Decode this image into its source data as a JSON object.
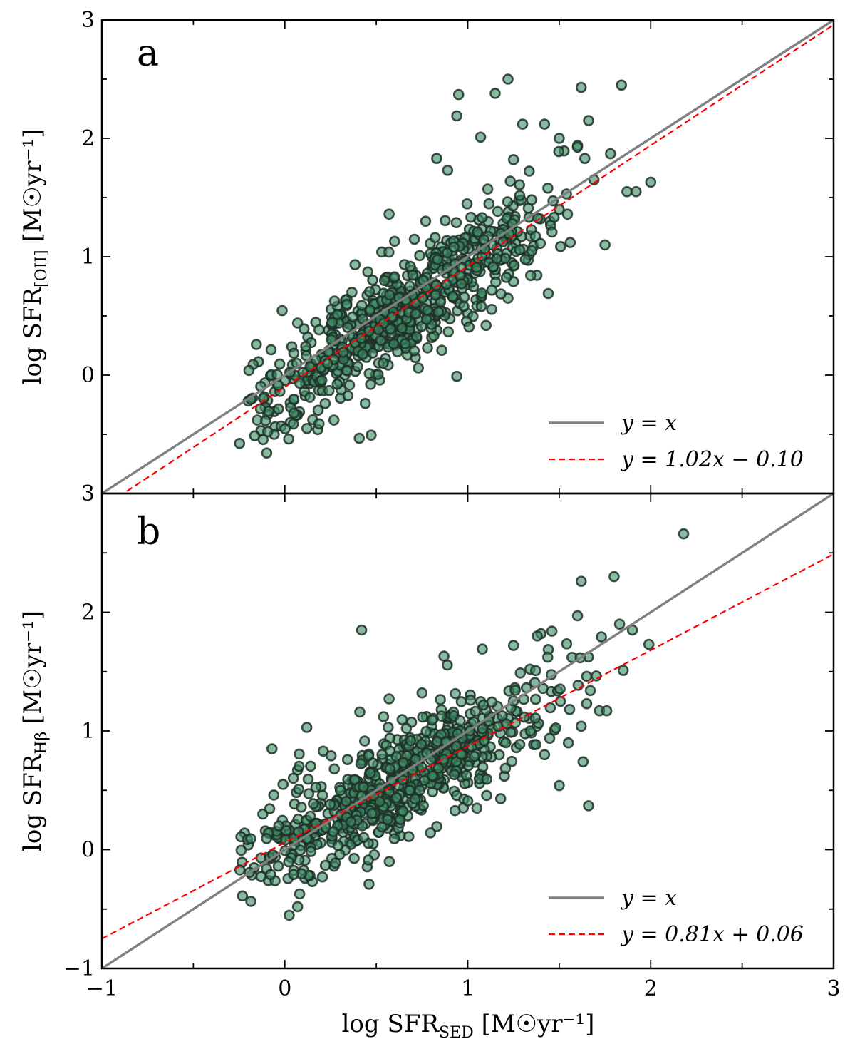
{
  "colors": {
    "marker_fill": "#3f8f66",
    "marker_edge": "#1f2f28",
    "identity_line": "#808080",
    "fit_line": "#ff0000"
  },
  "axis_labels": {
    "x_main": "log SFR",
    "x_sub": "SED",
    "x_unit": "[M☉yr⁻¹]",
    "ya_main": "log SFR",
    "ya_sub": "[OII]",
    "ya_unit": "[M☉yr⁻¹]",
    "yb_main": "log SFR",
    "yb_sub": "Hβ",
    "yb_unit": "[M☉yr⁻¹]"
  },
  "panels": {
    "a": {
      "letter": "a"
    },
    "b": {
      "letter": "b"
    }
  },
  "chart_data": [
    {
      "type": "scatter",
      "panel": "a",
      "title": "",
      "xlabel": "log SFR_SED [M☉yr⁻¹]",
      "ylabel": "log SFR_[OII] [M☉yr⁻¹]",
      "xlim": [
        -1,
        3
      ],
      "ylim": [
        -1,
        3
      ],
      "y_tick_labels": [
        "0",
        "1",
        "2",
        "3"
      ],
      "bottom_edge_label": "3",
      "x_tick_labels": [],
      "grid": false,
      "legend_position": "bottom-right",
      "lines": [
        {
          "name": "y = x",
          "slope": 1.0,
          "intercept": 0.0,
          "style": "solid",
          "color": "#808080"
        },
        {
          "name": "y = 1.02x − 0.10",
          "slope": 1.02,
          "intercept": -0.1,
          "style": "dashed",
          "color": "#ff0000"
        }
      ],
      "n_points": 720,
      "points": [
        [
          1.22,
          2.5
        ],
        [
          0.95,
          2.37
        ],
        [
          1.15,
          2.38
        ],
        [
          1.62,
          2.43
        ],
        [
          1.84,
          2.45
        ],
        [
          0.94,
          2.19
        ],
        [
          1.3,
          2.12
        ],
        [
          1.42,
          2.12
        ],
        [
          1.5,
          2.0
        ],
        [
          1.66,
          2.15
        ],
        [
          1.6,
          1.94
        ],
        [
          1.07,
          2.01
        ],
        [
          1.78,
          1.87
        ],
        [
          0.83,
          1.83
        ],
        [
          0.89,
          1.73
        ],
        [
          1.25,
          1.82
        ],
        [
          1.64,
          1.83
        ],
        [
          1.69,
          1.65
        ],
        [
          1.87,
          1.55
        ],
        [
          1.92,
          1.55
        ],
        [
          2.0,
          1.63
        ],
        [
          1.75,
          1.1
        ],
        [
          1.56,
          1.12
        ],
        [
          1.44,
          0.69
        ],
        [
          0.57,
          1.36
        ],
        [
          0.77,
          1.3
        ],
        [
          0.6,
          1.13
        ],
        [
          0.53,
          1.04
        ],
        [
          0.4,
          0.54
        ],
        [
          0.34,
          0.64
        ],
        [
          0.07,
          0.44
        ],
        [
          0.03,
          -0.4
        ],
        [
          0.18,
          -0.46
        ],
        [
          0.08,
          -0.31
        ],
        [
          -0.13,
          -0.47
        ],
        [
          -0.15,
          -0.38
        ],
        [
          -0.2,
          -0.22
        ],
        [
          0.44,
          -0.24
        ],
        [
          0.94,
          -0.01
        ],
        [
          0.53,
          0.54
        ],
        [
          0.55,
          0.14
        ],
        [
          0.73,
          0.06
        ],
        [
          0.78,
          0.23
        ],
        [
          1.0,
          0.52
        ],
        [
          1.1,
          0.42
        ],
        [
          1.15,
          0.85
        ],
        [
          1.25,
          0.79
        ],
        [
          1.22,
          0.65
        ],
        [
          1.33,
          0.97
        ],
        [
          1.36,
          1.09
        ],
        [
          1.45,
          1.3
        ],
        [
          1.5,
          1.4
        ],
        [
          1.54,
          1.53
        ]
      ]
    },
    {
      "type": "scatter",
      "panel": "b",
      "title": "",
      "xlabel": "log SFR_SED [M☉yr⁻¹]",
      "ylabel": "log SFR_Hβ [M☉yr⁻¹]",
      "xlim": [
        -1,
        3
      ],
      "ylim": [
        -1,
        3
      ],
      "x_tick_labels": [
        "−1",
        "0",
        "1",
        "2",
        "3"
      ],
      "y_tick_labels": [
        "−1",
        "0",
        "1",
        "2"
      ],
      "grid": false,
      "legend_position": "bottom-right",
      "lines": [
        {
          "name": "y = x",
          "slope": 1.0,
          "intercept": 0.0,
          "style": "solid",
          "color": "#808080"
        },
        {
          "name": "y = 0.81x + 0.06",
          "slope": 0.81,
          "intercept": 0.06,
          "style": "dashed",
          "color": "#ff0000"
        }
      ],
      "n_points": 720,
      "points": [
        [
          2.18,
          2.66
        ],
        [
          1.62,
          2.26
        ],
        [
          1.8,
          2.3
        ],
        [
          1.6,
          1.97
        ],
        [
          1.83,
          1.9
        ],
        [
          1.9,
          1.85
        ],
        [
          1.99,
          1.73
        ],
        [
          1.85,
          1.51
        ],
        [
          0.42,
          1.85
        ],
        [
          1.4,
          1.82
        ],
        [
          1.46,
          1.84
        ],
        [
          1.38,
          1.8
        ],
        [
          1.65,
          1.46
        ],
        [
          1.67,
          1.34
        ],
        [
          1.65,
          1.23
        ],
        [
          1.72,
          1.17
        ],
        [
          1.76,
          1.17
        ],
        [
          1.62,
          1.04
        ],
        [
          1.63,
          0.74
        ],
        [
          1.66,
          0.37
        ],
        [
          1.5,
          0.54
        ],
        [
          1.57,
          1.62
        ],
        [
          1.25,
          1.72
        ],
        [
          1.08,
          1.69
        ],
        [
          0.87,
          1.63
        ],
        [
          0.75,
          1.32
        ],
        [
          0.57,
          1.27
        ],
        [
          0.54,
          1.12
        ],
        [
          0.41,
          1.16
        ],
        [
          0.12,
          1.03
        ],
        [
          -0.07,
          0.85
        ],
        [
          0.21,
          0.83
        ],
        [
          0.07,
          0.67
        ],
        [
          -0.01,
          0.55
        ],
        [
          -0.06,
          0.46
        ],
        [
          -0.12,
          0.3
        ],
        [
          -0.22,
          0.14
        ],
        [
          -0.2,
          0.04
        ],
        [
          -0.13,
          -0.07
        ],
        [
          -0.1,
          -0.16
        ],
        [
          -0.09,
          -0.26
        ],
        [
          0.07,
          -0.48
        ],
        [
          0.46,
          -0.29
        ],
        [
          0.11,
          -0.09
        ],
        [
          0.11,
          -0.24
        ],
        [
          0.6,
          0.14
        ],
        [
          1.05,
          0.35
        ],
        [
          1.18,
          0.43
        ],
        [
          1.2,
          0.62
        ],
        [
          1.42,
          0.8
        ],
        [
          1.55,
          0.9
        ],
        [
          1.34,
          1.52
        ]
      ]
    }
  ]
}
